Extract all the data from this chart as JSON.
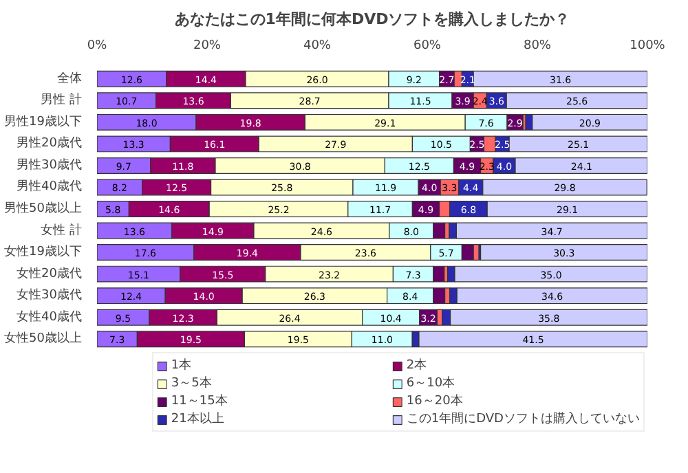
{
  "chart_data": {
    "type": "bar",
    "orientation": "horizontal",
    "stacked": true,
    "title": "あなたはこの1年間に何本DVDソフトを購入しましたか？",
    "categories": [
      "全体",
      "男性 計",
      "男性19歳以下",
      "男性20歳代",
      "男性30歳代",
      "男性40歳代",
      "男性50歳以上",
      "女性 計",
      "女性19歳以下",
      "女性20歳代",
      "女性30歳代",
      "女性40歳代",
      "女性50歳以上"
    ],
    "xlim": [
      0,
      100
    ],
    "xticks": [
      {
        "value": 0,
        "label": "0%"
      },
      {
        "value": 20,
        "label": "20%"
      },
      {
        "value": 40,
        "label": "40%"
      },
      {
        "value": 60,
        "label": "60%"
      },
      {
        "value": 80,
        "label": "80%"
      },
      {
        "value": 100,
        "label": "100%"
      }
    ],
    "legend": "bottom",
    "grid": false,
    "series": [
      {
        "name": "1本",
        "color": "#9966ff",
        "values": [
          12.6,
          10.7,
          18.0,
          13.3,
          9.7,
          8.2,
          5.8,
          13.6,
          17.6,
          15.1,
          12.4,
          9.5,
          7.3
        ],
        "value_labels": [
          "12.6",
          "10.7",
          "18.0",
          "13.3",
          "9.7",
          "8.2",
          "5.8",
          "13.6",
          "17.6",
          "15.1",
          "12.4",
          "9.5",
          "7.3"
        ]
      },
      {
        "name": "2本",
        "color": "#990066",
        "values": [
          14.4,
          13.6,
          19.8,
          16.1,
          11.8,
          12.5,
          14.6,
          14.9,
          19.4,
          15.5,
          14.0,
          12.3,
          19.5
        ],
        "value_labels": [
          "14.4",
          "13.6",
          "19.8",
          "16.1",
          "11.8",
          "12.5",
          "14.6",
          "14.9",
          "19.4",
          "15.5",
          "14.0",
          "12.3",
          "19.5"
        ]
      },
      {
        "name": "3～5本",
        "color": "#ffffcc",
        "values": [
          26.0,
          28.7,
          29.1,
          27.9,
          30.8,
          25.8,
          25.2,
          24.6,
          23.6,
          23.2,
          26.3,
          26.4,
          19.5
        ],
        "value_labels": [
          "26.0",
          "28.7",
          "29.1",
          "27.9",
          "30.8",
          "25.8",
          "25.2",
          "24.6",
          "23.6",
          "23.2",
          "26.3",
          "26.4",
          "19.5"
        ]
      },
      {
        "name": "6～10本",
        "color": "#ccffff",
        "values": [
          9.2,
          11.5,
          7.6,
          10.5,
          12.5,
          11.9,
          11.7,
          8.0,
          5.7,
          7.3,
          8.4,
          10.4,
          11.0
        ],
        "value_labels": [
          "9.2",
          "11.5",
          "7.6",
          "10.5",
          "12.5",
          "11.9",
          "11.7",
          "8.0",
          "5.7",
          "7.3",
          "8.4",
          "10.4",
          "11.0"
        ]
      },
      {
        "name": "11～15本",
        "color": "#660066",
        "values": [
          2.7,
          3.9,
          2.9,
          2.5,
          4.9,
          4.0,
          4.9,
          2.1,
          2.1,
          2.0,
          2.1,
          3.2,
          0.0
        ],
        "value_labels": [
          "2.7",
          "3.9",
          "2.9",
          "2.5",
          "4.9",
          "4.0",
          "4.9",
          null,
          null,
          null,
          null,
          "3.2",
          null
        ]
      },
      {
        "name": "16～20本",
        "color": "#ff6666",
        "values": [
          1.4,
          2.4,
          0.5,
          2.1,
          2.3,
          3.3,
          1.9,
          0.8,
          1.0,
          0.6,
          0.9,
          0.9,
          0.0
        ],
        "value_labels": [
          null,
          "2.4",
          null,
          null,
          "2.3",
          "3.3",
          null,
          null,
          null,
          null,
          null,
          null,
          null
        ]
      },
      {
        "name": "21本以上",
        "color": "#2a2ab0",
        "values": [
          2.1,
          3.6,
          1.2,
          2.5,
          4.0,
          4.4,
          6.8,
          1.3,
          0.3,
          1.3,
          1.3,
          1.5,
          1.2
        ],
        "value_labels": [
          "2.1",
          "3.6",
          null,
          "2.5",
          "4.0",
          "4.4",
          "6.8",
          null,
          null,
          null,
          null,
          null,
          null
        ]
      },
      {
        "name": "この1年間にDVDソフトは購入していない",
        "color": "#ccccff",
        "values": [
          31.6,
          25.6,
          20.9,
          25.1,
          24.1,
          29.8,
          29.1,
          34.7,
          30.3,
          35.0,
          34.6,
          35.8,
          41.5
        ],
        "value_labels": [
          "31.6",
          "25.6",
          "20.9",
          "25.1",
          "24.1",
          "29.8",
          "29.1",
          "34.7",
          "30.3",
          "35.0",
          "34.6",
          "35.8",
          "41.5"
        ]
      }
    ]
  }
}
